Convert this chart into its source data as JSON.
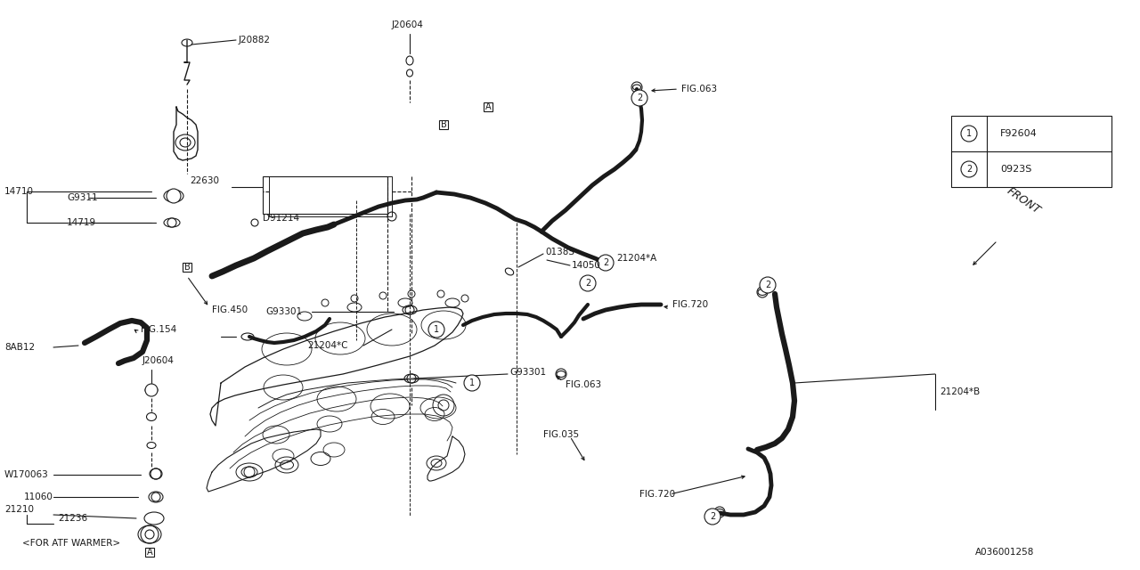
{
  "bg_color": "#ffffff",
  "line_color": "#1a1a1a",
  "legend": [
    {
      "num": "1",
      "code": "F92604"
    },
    {
      "num": "2",
      "code": "0923S"
    }
  ],
  "fig_w": 12.8,
  "fig_h": 6.4,
  "dpi": 100
}
